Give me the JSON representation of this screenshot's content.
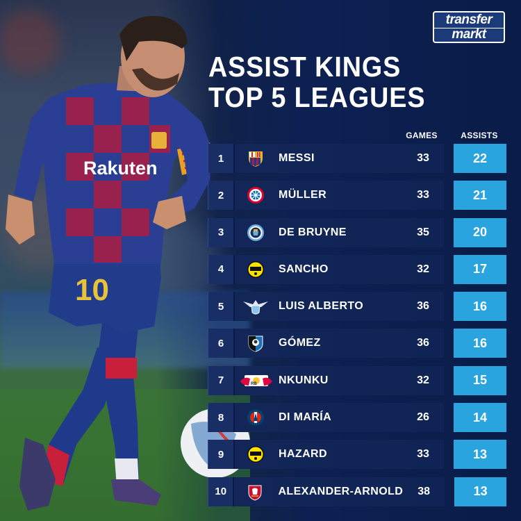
{
  "logo": {
    "line1": "transfer",
    "line2": "markt"
  },
  "title": {
    "line1": "ASSIST KINGS",
    "line2": "TOP 5 LEAGUES"
  },
  "columns": {
    "games": "GAMES",
    "assists": "ASSISTS"
  },
  "jersey": {
    "sponsor": "Rakuten",
    "number": "10"
  },
  "colors": {
    "accent": "#2aa4df",
    "row_bg": "#122658",
    "background": "#0c2052"
  },
  "rows": [
    {
      "rank": "1",
      "name": "MESSI",
      "games": "33",
      "assists": "22",
      "crest": "barcelona-crest-icon"
    },
    {
      "rank": "2",
      "name": "MÜLLER",
      "games": "33",
      "assists": "21",
      "crest": "bayern-crest-icon"
    },
    {
      "rank": "3",
      "name": "DE BRUYNE",
      "games": "35",
      "assists": "20",
      "crest": "man-city-crest-icon"
    },
    {
      "rank": "4",
      "name": "SANCHO",
      "games": "32",
      "assists": "17",
      "crest": "dortmund-crest-icon"
    },
    {
      "rank": "5",
      "name": "LUIS ALBERTO",
      "games": "36",
      "assists": "16",
      "crest": "lazio-crest-icon"
    },
    {
      "rank": "6",
      "name": "GÓMEZ",
      "games": "36",
      "assists": "16",
      "crest": "atalanta-crest-icon"
    },
    {
      "rank": "7",
      "name": "NKUNKU",
      "games": "32",
      "assists": "15",
      "crest": "leipzig-crest-icon"
    },
    {
      "rank": "8",
      "name": "DI MARÍA",
      "games": "26",
      "assists": "14",
      "crest": "psg-crest-icon"
    },
    {
      "rank": "9",
      "name": "HAZARD",
      "games": "33",
      "assists": "13",
      "crest": "dortmund-crest-icon"
    },
    {
      "rank": "10",
      "name": "ALEXANDER-ARNOLD",
      "games": "38",
      "assists": "13",
      "crest": "liverpool-crest-icon"
    }
  ]
}
